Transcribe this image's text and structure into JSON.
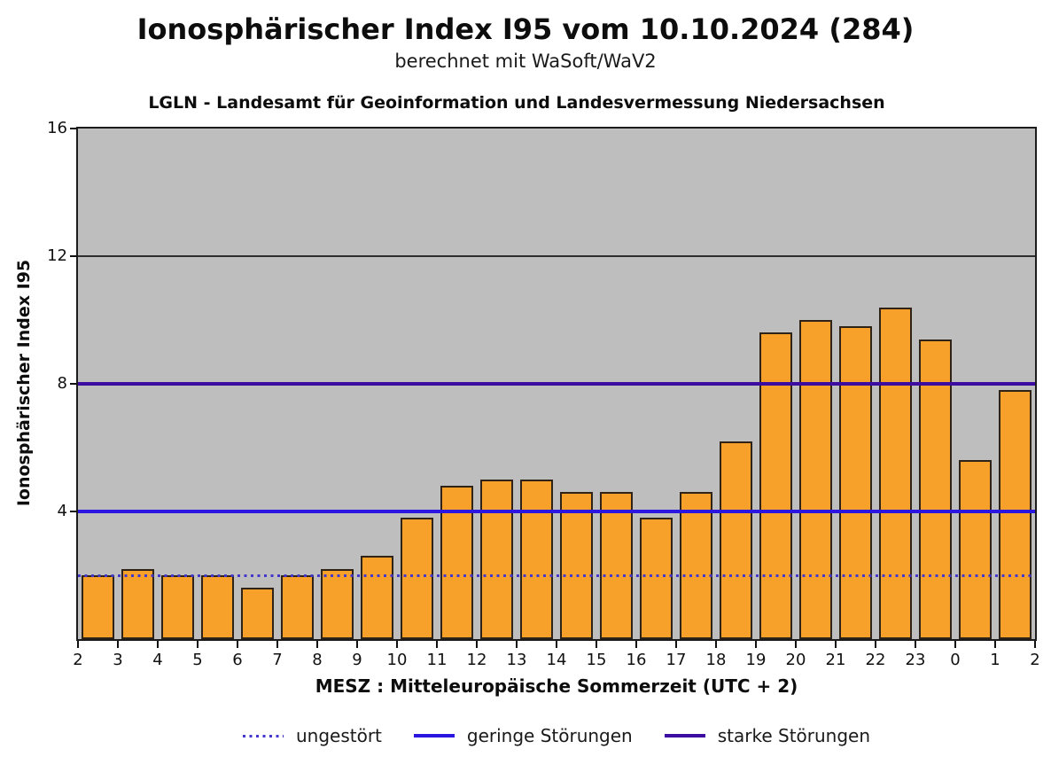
{
  "figure": {
    "title": "Ionosphärischer Index I95 vom 10.10.2024 (284)",
    "subtitle": "berechnet mit WaSoft/WaV2"
  },
  "chart_data": {
    "type": "bar",
    "axes_title": "LGLN - Landesamt für Geoinformation und Landesvermessung Niedersachsen",
    "xlabel": "MESZ : Mitteleuropäische Sommerzeit (UTC + 2)",
    "ylabel": "Ionosphärischer Index I95",
    "ylim": [
      0,
      16
    ],
    "y_ticks": [
      16,
      12,
      8,
      4
    ],
    "x_tick_labels": [
      "2",
      "3",
      "4",
      "5",
      "6",
      "7",
      "8",
      "9",
      "10",
      "11",
      "12",
      "13",
      "14",
      "15",
      "16",
      "17",
      "18",
      "19",
      "20",
      "21",
      "22",
      "23",
      "0",
      "1",
      "2"
    ],
    "categories": [
      "2-3",
      "3-4",
      "4-5",
      "5-6",
      "6-7",
      "7-8",
      "8-9",
      "9-10",
      "10-11",
      "11-12",
      "12-13",
      "13-14",
      "14-15",
      "15-16",
      "16-17",
      "17-18",
      "18-19",
      "19-20",
      "20-21",
      "21-22",
      "22-23",
      "23-0",
      "0-1",
      "1-2"
    ],
    "values": [
      2.0,
      2.2,
      2.0,
      2.0,
      1.6,
      2.0,
      2.2,
      2.6,
      3.8,
      4.8,
      5.0,
      5.0,
      4.6,
      4.6,
      3.8,
      4.6,
      6.2,
      9.6,
      10.0,
      9.8,
      10.4,
      9.4,
      5.6,
      7.8
    ],
    "grid_values": [
      12
    ],
    "reference_lines": [
      {
        "label": "ungestört",
        "value": 2,
        "style": "dotted",
        "color": "#4438cc"
      },
      {
        "label": "geringe Störungen",
        "value": 4,
        "style": "solid",
        "color": "#2a16e0"
      },
      {
        "label": "starke Störungen",
        "value": 8,
        "style": "solid",
        "color": "#3c0ca0"
      }
    ],
    "legend_position": "bottom",
    "grid": "partial",
    "colors": {
      "bar_fill": "#f7a12b",
      "bar_edge": "#2f2217",
      "plot_bg": "#bebebe",
      "grid_line": "#2e2e2e",
      "axis": "#1c1c1c",
      "text": "#000000"
    }
  }
}
